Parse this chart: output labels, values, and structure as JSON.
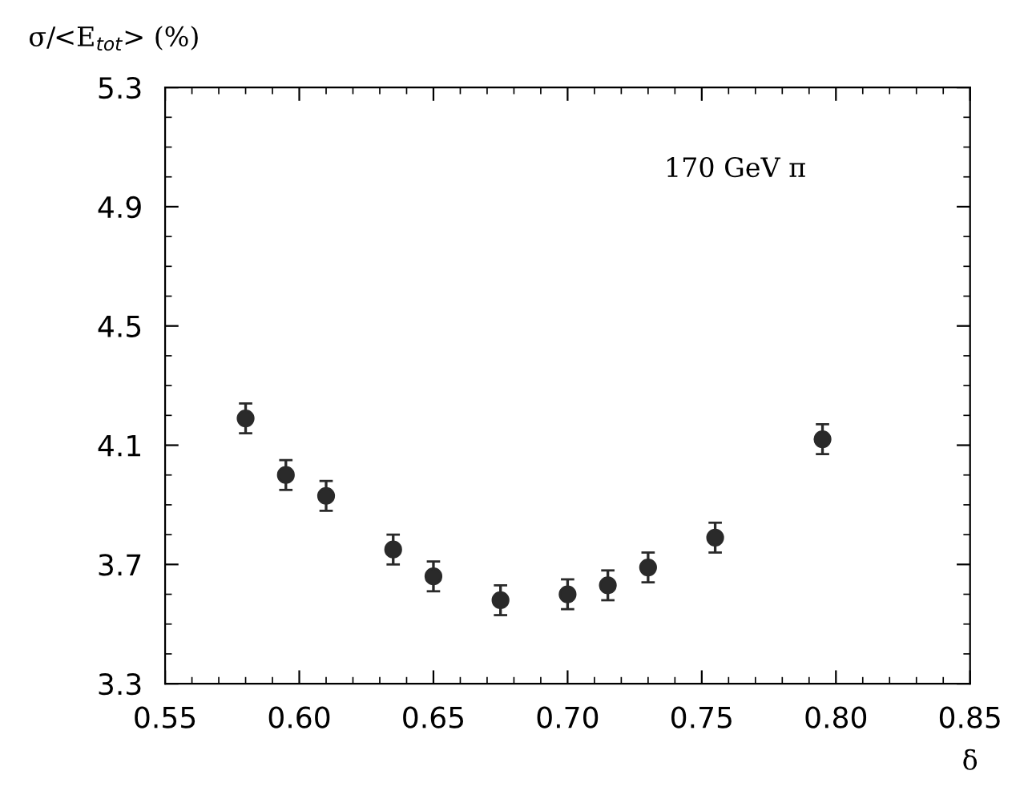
{
  "chart_data": {
    "type": "scatter",
    "ylabel": "σ/<E$_{tot}$> (%)",
    "xlabel": "δ",
    "annotations": [
      "170 GeV π"
    ],
    "x": [
      0.58,
      0.595,
      0.61,
      0.635,
      0.65,
      0.675,
      0.7,
      0.715,
      0.73,
      0.755,
      0.795
    ],
    "series": [
      {
        "color": "#2a2a2a",
        "values": [
          4.19,
          4.0,
          3.93,
          3.75,
          3.66,
          3.58,
          3.6,
          3.63,
          3.69,
          3.79,
          4.12
        ],
        "errors": [
          0.05,
          0.05,
          0.05,
          0.05,
          0.05,
          0.05,
          0.05,
          0.05,
          0.05,
          0.05,
          0.05
        ]
      }
    ],
    "xlim": [
      0.55,
      0.85
    ],
    "xticks": [
      {
        "value": 0.55,
        "label": "0.55"
      },
      {
        "value": 0.6,
        "label": "0.60"
      },
      {
        "value": 0.65,
        "label": "0.65"
      },
      {
        "value": 0.7,
        "label": "0.70"
      },
      {
        "value": 0.75,
        "label": "0.75"
      },
      {
        "value": 0.8,
        "label": "0.80"
      },
      {
        "value": 0.85,
        "label": "0.85"
      }
    ],
    "ylim": [
      3.3,
      5.3
    ],
    "yticks": [
      3.3,
      3.7,
      4.1,
      4.5,
      4.9,
      5.3
    ],
    "marker": "circle",
    "grid": false,
    "legend": false
  }
}
